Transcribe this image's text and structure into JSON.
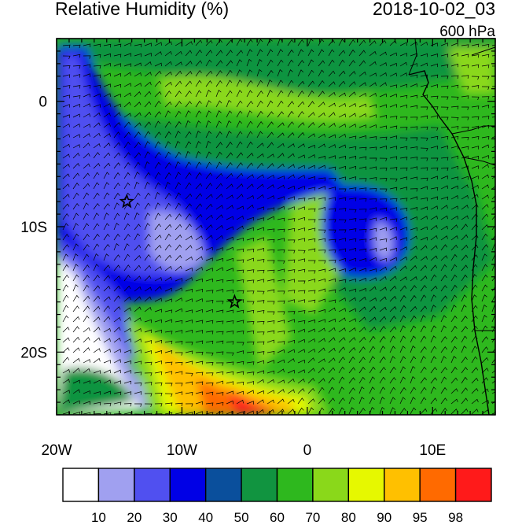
{
  "header": {
    "title": "Relative Humidity (%)",
    "datetime": "2018-10-02_03",
    "level": "600 hPa"
  },
  "map": {
    "lon_range": [
      -20,
      15
    ],
    "lat_range": [
      -25,
      5
    ],
    "x_ticks": [
      {
        "lon": -20,
        "label": "20W"
      },
      {
        "lon": -10,
        "label": "10W"
      },
      {
        "lon": 0,
        "label": "0"
      },
      {
        "lon": 10,
        "label": "10E"
      }
    ],
    "y_ticks": [
      {
        "lat": 0,
        "label": "0"
      },
      {
        "lat": -10,
        "label": "10S"
      },
      {
        "lat": -20,
        "label": "20S"
      }
    ],
    "markers": [
      {
        "type": "star",
        "lon": -14.4,
        "lat": -8.0
      },
      {
        "type": "star",
        "lon": -5.8,
        "lat": -16.0
      }
    ]
  },
  "colorbar": {
    "labels": [
      "10",
      "20",
      "30",
      "40",
      "50",
      "60",
      "70",
      "80",
      "90",
      "95",
      "98"
    ],
    "colors": [
      "#ffffff",
      "#a0a0f0",
      "#5050f0",
      "#0000e6",
      "#0a4f9c",
      "#119440",
      "#2eb81e",
      "#8ad81a",
      "#e6f800",
      "#ffc000",
      "#ff6a00",
      "#ff1a1a"
    ]
  }
}
